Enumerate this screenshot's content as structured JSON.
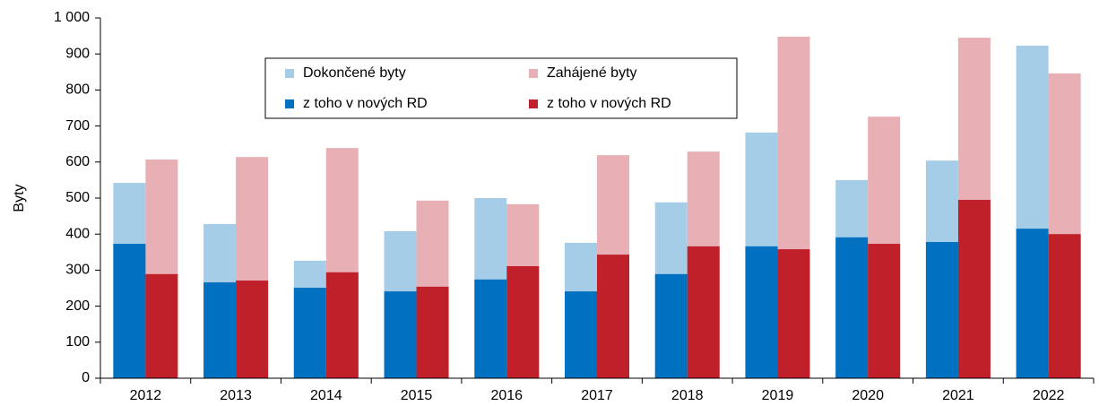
{
  "chart_data": {
    "type": "bar",
    "y_label": "Byty",
    "categories": [
      "2012",
      "2013",
      "2014",
      "2015",
      "2016",
      "2017",
      "2018",
      "2019",
      "2020",
      "2021",
      "2022"
    ],
    "series": [
      {
        "name": "Dokončené byty",
        "color": "#a6cde8",
        "values": [
          542,
          428,
          326,
          408,
          500,
          376,
          488,
          682,
          550,
          604,
          923
        ]
      },
      {
        "name": "Zahájené byty",
        "color": "#e8b0b4",
        "values": [
          607,
          614,
          639,
          493,
          483,
          619,
          629,
          948,
          726,
          945,
          846
        ]
      },
      {
        "name": "z toho v nových RD",
        "color": "#0070c0",
        "values": [
          373,
          266,
          251,
          241,
          274,
          241,
          289,
          366,
          391,
          378,
          415
        ]
      },
      {
        "name": "z toho v nových RD",
        "color": "#c0202a",
        "values": [
          289,
          271,
          294,
          254,
          311,
          343,
          366,
          358,
          373,
          495,
          400
        ]
      }
    ],
    "ylim": [
      0,
      1000
    ],
    "yticks": [
      0,
      100,
      200,
      300,
      400,
      500,
      600,
      700,
      800,
      900,
      {
        "value": 1000,
        "label": "1 000"
      }
    ],
    "grid": false
  }
}
